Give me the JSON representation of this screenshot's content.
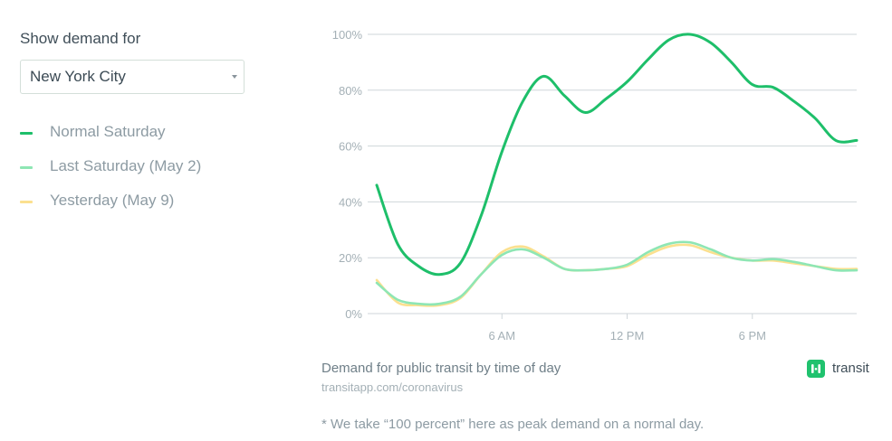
{
  "sidebar": {
    "show_label": "Show demand for",
    "city_select": {
      "value": "New York City"
    }
  },
  "legend": [
    {
      "label": "Normal Saturday",
      "color": "#1ebf6a"
    },
    {
      "label": "Last Saturday (May 2)",
      "color": "#8ee6b4"
    },
    {
      "label": "Yesterday (May 9)",
      "color": "#fbe08f"
    }
  ],
  "caption": "Demand for public transit by time of day",
  "source": "transitapp.com/coronavirus",
  "footnote": "* We take “100 percent” here as peak demand on a normal day.",
  "brand": {
    "name": "transit",
    "icon": "transit-logo-icon",
    "color": "#20c26e"
  },
  "chart_data": {
    "type": "line",
    "title": "",
    "xlabel": "",
    "ylabel": "",
    "x_unit": "hour of day",
    "xlim": [
      0,
      23
    ],
    "ylim": [
      0,
      100
    ],
    "grid": true,
    "x_ticks": [
      {
        "value": 6,
        "label": "6 AM"
      },
      {
        "value": 12,
        "label": "12 PM"
      },
      {
        "value": 18,
        "label": "6 PM"
      }
    ],
    "y_ticks": [
      {
        "value": 0,
        "label": "0%"
      },
      {
        "value": 20,
        "label": "20%"
      },
      {
        "value": 40,
        "label": "40%"
      },
      {
        "value": 60,
        "label": "60%"
      },
      {
        "value": 80,
        "label": "80%"
      },
      {
        "value": 100,
        "label": "100%"
      }
    ],
    "series": [
      {
        "name": "Normal Saturday",
        "color": "#1ebf6a",
        "x": [
          0,
          1,
          2,
          3,
          4,
          5,
          6,
          7,
          8,
          9,
          10,
          11,
          12,
          13,
          14,
          15,
          16,
          17,
          18,
          19,
          20,
          21,
          22,
          23
        ],
        "values": [
          46,
          25,
          17,
          14,
          18,
          35,
          58,
          76,
          85,
          78,
          72,
          77,
          83,
          91,
          98,
          100,
          97,
          90,
          82,
          81,
          76,
          70,
          62,
          62
        ]
      },
      {
        "name": "Last Saturday (May 2)",
        "color": "#8ee6b4",
        "x": [
          0,
          1,
          2,
          3,
          4,
          5,
          6,
          7,
          8,
          9,
          10,
          11,
          12,
          13,
          14,
          15,
          16,
          17,
          18,
          19,
          20,
          21,
          22,
          23
        ],
        "values": [
          11,
          5,
          3.5,
          3.5,
          6,
          14,
          21,
          23,
          20,
          16,
          15.5,
          16,
          17.5,
          22,
          25,
          25.5,
          23,
          20,
          19,
          19.5,
          18.5,
          17,
          15.5,
          15.5
        ]
      },
      {
        "name": "Yesterday (May 9)",
        "color": "#fbe08f",
        "x": [
          0,
          1,
          2,
          3,
          4,
          5,
          6,
          7,
          8,
          9,
          10,
          11,
          12,
          13,
          14,
          15,
          16,
          17,
          18,
          19,
          20,
          21,
          22,
          23
        ],
        "values": [
          12,
          4,
          3,
          3,
          5.5,
          14,
          22,
          24,
          20.5,
          16,
          15.5,
          16,
          17,
          21,
          24,
          24.5,
          22,
          20,
          19,
          19,
          18,
          17,
          16,
          16
        ]
      }
    ]
  }
}
